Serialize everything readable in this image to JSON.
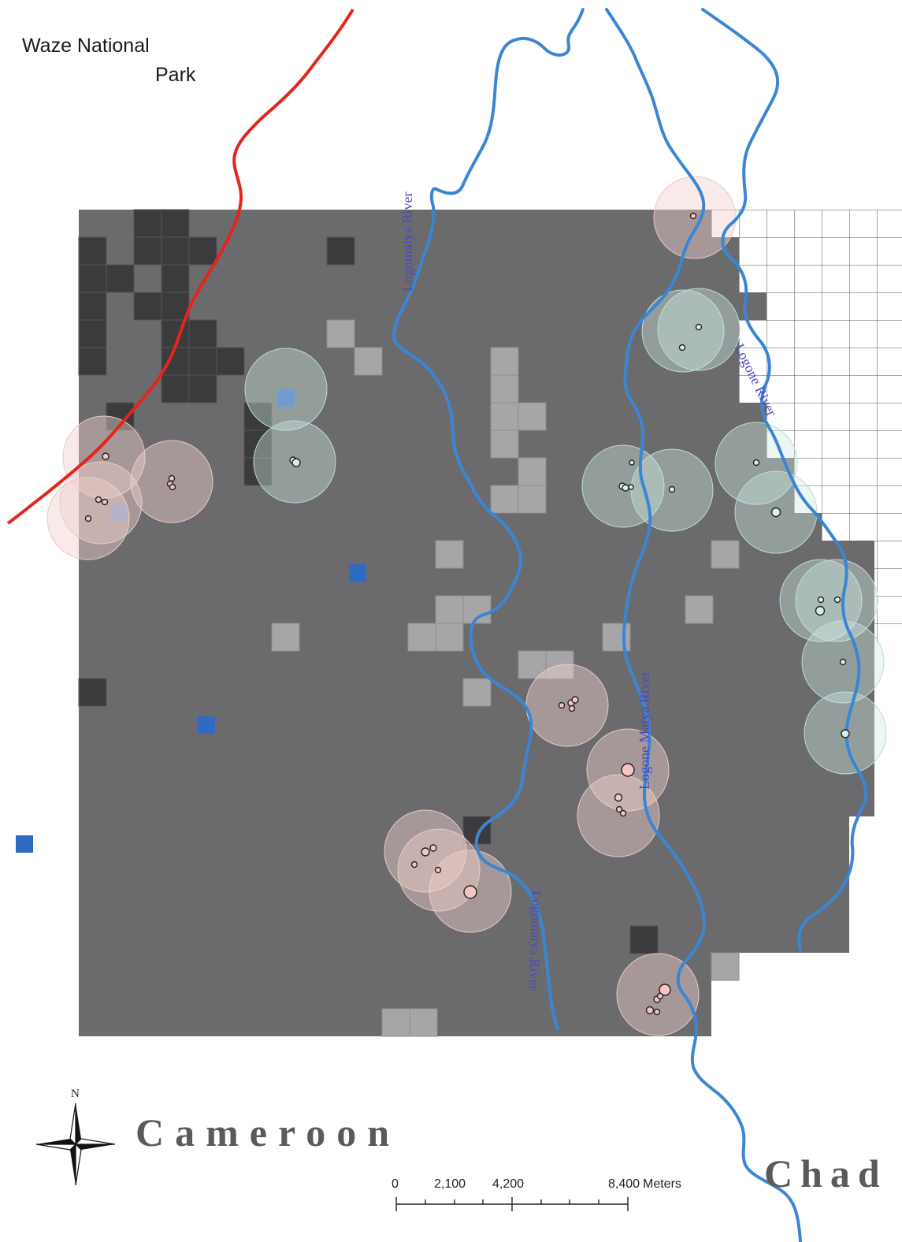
{
  "labels": {
    "park_line1": "Waze National",
    "park_line2": "Park",
    "country_west": "Cameroon",
    "country_east": "Chad",
    "north": "N"
  },
  "rivers": [
    {
      "name": "Logomatya River"
    },
    {
      "name": "Logone Matya River"
    },
    {
      "name": "Logone River"
    },
    {
      "name": "Logomatya River"
    }
  ],
  "scale_bar": {
    "ticks": [
      "0",
      "2,100",
      "4,200",
      "8,400"
    ],
    "unit": "Meters"
  },
  "colors": {
    "background": "#ffffff",
    "grid_dark": "#6b6b6d",
    "grid_darker": "#3b3b3d",
    "grid_light": "#a6a6a8",
    "blue_points": "#2f6bc4",
    "river": "#3a86d4",
    "boundary": "#e3251b",
    "buffer_pink": "#f0d8d6",
    "buffer_teal": "#cfe9e3"
  }
}
